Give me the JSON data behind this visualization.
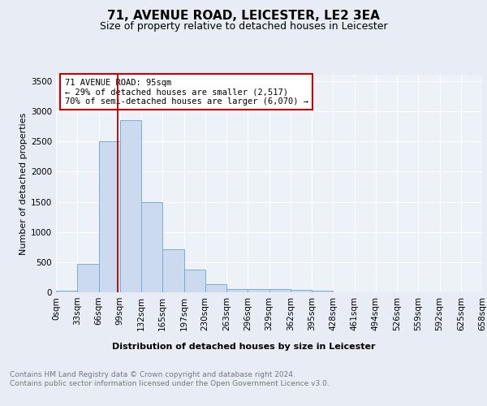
{
  "title": "71, AVENUE ROAD, LEICESTER, LE2 3EA",
  "subtitle": "Size of property relative to detached houses in Leicester",
  "xlabel": "Distribution of detached houses by size in Leicester",
  "ylabel": "Number of detached properties",
  "bin_labels": [
    "0sqm",
    "33sqm",
    "66sqm",
    "99sqm",
    "132sqm",
    "165sqm",
    "197sqm",
    "230sqm",
    "263sqm",
    "296sqm",
    "329sqm",
    "362sqm",
    "395sqm",
    "428sqm",
    "461sqm",
    "494sqm",
    "526sqm",
    "559sqm",
    "592sqm",
    "625sqm",
    "658sqm"
  ],
  "bar_heights": [
    30,
    470,
    2500,
    2850,
    1500,
    720,
    380,
    140,
    60,
    50,
    55,
    40,
    25,
    0,
    0,
    0,
    0,
    0,
    0,
    0
  ],
  "bar_color": "#ccdaf0",
  "bar_edge_color": "#7aadd4",
  "vline_bin_index": 2.879,
  "annotation_text": "71 AVENUE ROAD: 95sqm\n← 29% of detached houses are smaller (2,517)\n70% of semi-detached houses are larger (6,070) →",
  "annotation_box_color": "white",
  "annotation_box_edge_color": "#cc0000",
  "vline_color": "#aa0000",
  "ylim": [
    0,
    3600
  ],
  "yticks": [
    0,
    500,
    1000,
    1500,
    2000,
    2500,
    3000,
    3500
  ],
  "footer_text": "Contains HM Land Registry data © Crown copyright and database right 2024.\nContains public sector information licensed under the Open Government Licence v3.0.",
  "bg_color": "#e8edf5",
  "plot_bg_color": "#edf1f8",
  "grid_color": "#ffffff",
  "title_fontsize": 11,
  "subtitle_fontsize": 9,
  "ylabel_fontsize": 8,
  "tick_fontsize": 7.5,
  "xlabel_fontsize": 8,
  "footer_fontsize": 6.5
}
